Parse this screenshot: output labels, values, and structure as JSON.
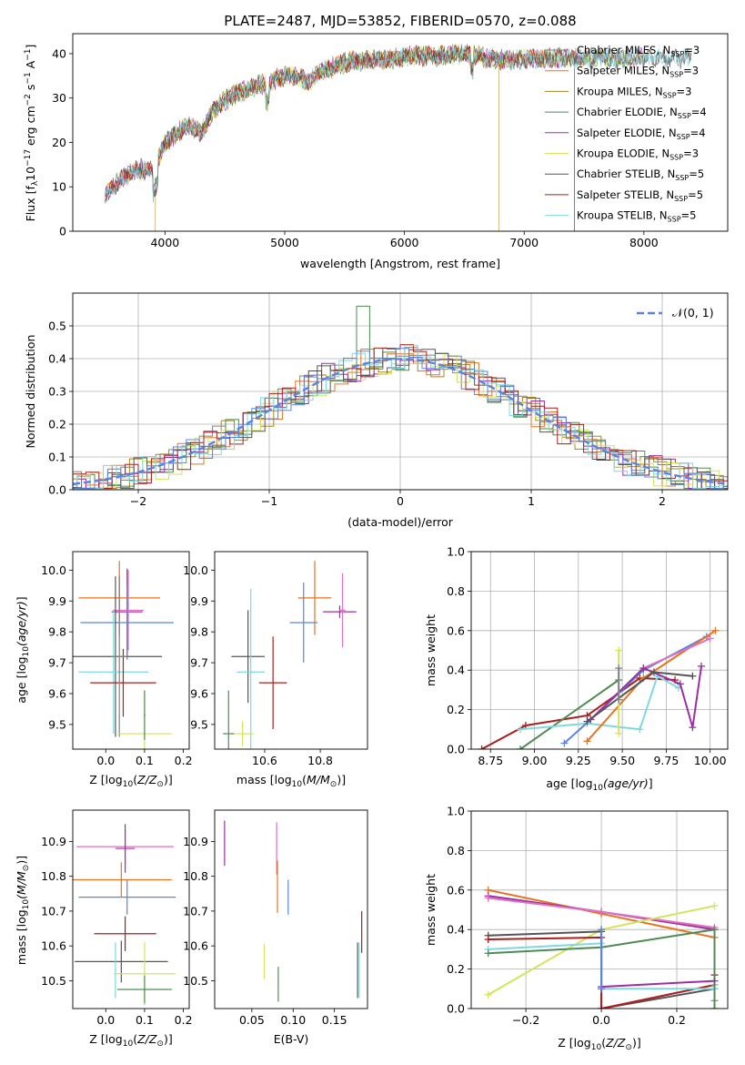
{
  "figure_title": "PLATE=2487, MJD=53852, FIBERID=0570, z=0.088",
  "colors": {
    "chabrier_miles": "#808080",
    "salpeter_miles": "#e8731f",
    "kroupa_miles": "#a8861d",
    "chabrier_elodie": "#4f8a55",
    "salpeter_elodie": "#9b2ea3",
    "kroupa_elodie": "#d4e35a",
    "chabrier_stelib": "#555555",
    "salpeter_stelib": "#a81f1f",
    "kroupa_stelib": "#7fd8e0",
    "blue": "#5b84e0",
    "pink": "#e070c0",
    "normal": "#5b84e0"
  },
  "chart_data": [
    {
      "id": "spectrum",
      "type": "line",
      "title": "PLATE=2487, MJD=53852, FIBERID=0570, z=0.088",
      "xlabel": "wavelength [Angstrom, rest frame]",
      "ylabel_main": "Flux [f",
      "ylabel_sub1": "λ",
      "ylabel_mid": "10",
      "ylabel_sup1": "−17",
      "ylabel_tail": " erg cm",
      "ylabel_sup2": "−2",
      "ylabel_tail2": " s",
      "ylabel_sup3": "−1",
      "ylabel_tail3": " A",
      "ylabel_sup4": "−1",
      "ylabel_end": "]",
      "xlim": [
        3230,
        8700
      ],
      "ylim": [
        0,
        44.5
      ],
      "xticks": [
        "4000",
        "5000",
        "6000",
        "7000",
        "8000"
      ],
      "xtick_values": [
        4000,
        5000,
        6000,
        7000,
        8000
      ],
      "yticks": [
        "0",
        "10",
        "20",
        "30",
        "40"
      ],
      "ytick_values": [
        0,
        10,
        20,
        30,
        40
      ],
      "continuum_knots": [
        [
          3500,
          8
        ],
        [
          3600,
          11
        ],
        [
          3700,
          13
        ],
        [
          3800,
          14
        ],
        [
          3900,
          13.5
        ],
        [
          4000,
          20
        ],
        [
          4100,
          22
        ],
        [
          4200,
          24
        ],
        [
          4300,
          22
        ],
        [
          4400,
          27
        ],
        [
          4500,
          29.5
        ],
        [
          4600,
          31
        ],
        [
          4700,
          32
        ],
        [
          4800,
          33
        ],
        [
          4900,
          34
        ],
        [
          5000,
          35
        ],
        [
          5100,
          35
        ],
        [
          5200,
          33.5
        ],
        [
          5300,
          36
        ],
        [
          5500,
          38
        ],
        [
          5700,
          38.5
        ],
        [
          5900,
          39
        ],
        [
          6100,
          39.5
        ],
        [
          6300,
          39.5
        ],
        [
          6500,
          40
        ],
        [
          6700,
          39
        ],
        [
          6900,
          38.5
        ],
        [
          7100,
          39
        ],
        [
          7300,
          39
        ],
        [
          7400,
          39
        ]
      ],
      "legend": [
        {
          "label": "Chabrier MILES, N",
          "sub": "SSP",
          "suffix": "=3",
          "color_key": "chabrier_miles"
        },
        {
          "label": "Salpeter MILES, N",
          "sub": "SSP",
          "suffix": "=3",
          "color_key": "salpeter_miles"
        },
        {
          "label": "Kroupa MILES, N",
          "sub": "SSP",
          "suffix": "=3",
          "color_key": "kroupa_miles"
        },
        {
          "label": "Chabrier ELODIE, N",
          "sub": "SSP",
          "suffix": "=4",
          "color_key": "chabrier_elodie"
        },
        {
          "label": "Salpeter ELODIE, N",
          "sub": "SSP",
          "suffix": "=4",
          "color_key": "salpeter_elodie"
        },
        {
          "label": "Kroupa ELODIE, N",
          "sub": "SSP",
          "suffix": "=3",
          "color_key": "kroupa_elodie"
        },
        {
          "label": "Chabrier STELIB, N",
          "sub": "SSP",
          "suffix": "=5",
          "color_key": "chabrier_stelib"
        },
        {
          "label": "Salpeter STELIB, N",
          "sub": "SSP",
          "suffix": "=5",
          "color_key": "salpeter_stelib"
        },
        {
          "label": "Kroupa STELIB, N",
          "sub": "SSP",
          "suffix": "=5",
          "color_key": "kroupa_stelib"
        }
      ]
    },
    {
      "id": "residuals",
      "type": "histogram",
      "xlabel": "(data-model)/error",
      "ylabel": "Normed distribution",
      "xlim": [
        -2.5,
        2.5
      ],
      "ylim": [
        0,
        0.6
      ],
      "xticks": [
        "−2",
        "−1",
        "0",
        "1",
        "2"
      ],
      "xtick_values": [
        -2,
        -1,
        0,
        1,
        2
      ],
      "yticks": [
        "0.0",
        "0.1",
        "0.2",
        "0.3",
        "0.4",
        "0.5"
      ],
      "ytick_values": [
        0,
        0.1,
        0.2,
        0.3,
        0.4,
        0.5
      ],
      "legend_label": "𝒩(0, 1)",
      "bin_width": 0.1,
      "grid": true
    },
    {
      "id": "age_vs_Z",
      "type": "errorbar",
      "xlabel": "Z [log",
      "xlabel_sub": "10",
      "xlabel_mid": "(",
      "xlabel_italic": "Z/Z",
      "xlabel_sub2": "⊙",
      "xlabel_end": ")]",
      "ylabel": "age  [log",
      "ylabel_sub": "10",
      "ylabel_italic": "(age/yr)",
      "ylabel_end": "]",
      "xlim": [
        -0.085,
        0.215
      ],
      "ylim": [
        9.42,
        10.06
      ],
      "xticks": [
        "0.0",
        "0.1",
        "0.2"
      ],
      "xtick_values": [
        0,
        0.1,
        0.2
      ],
      "yticks": [
        "9.5",
        "9.6",
        "9.7",
        "9.8",
        "9.9",
        "10.0"
      ],
      "ytick_values": [
        9.5,
        9.6,
        9.7,
        9.8,
        9.9,
        10.0
      ],
      "points": [
        {
          "x": 0.035,
          "xerr": 0.105,
          "y": 9.91,
          "yerr": 0.12,
          "color_key": "salpeter_miles"
        },
        {
          "x": 0.055,
          "xerr": 0.04,
          "y": 9.865,
          "yerr": 0.14,
          "color_key": "salpeter_elodie"
        },
        {
          "x": 0.058,
          "xerr": 0.04,
          "y": 9.87,
          "yerr": 0.13,
          "color_key": "pink"
        },
        {
          "x": 0.055,
          "xerr": 0.12,
          "y": 9.83,
          "yerr": 0.12,
          "color_key": "blue"
        },
        {
          "x": 0.025,
          "xerr": 0.12,
          "y": 9.72,
          "yerr": 0.26,
          "color_key": "chabrier_stelib"
        },
        {
          "x": 0.02,
          "xerr": 0.09,
          "y": 9.67,
          "yerr": 0.2,
          "color_key": "kroupa_stelib"
        },
        {
          "x": 0.045,
          "xerr": 0.085,
          "y": 9.635,
          "yerr": 0.11,
          "color_key": "salpeter_stelib"
        },
        {
          "x": 0.035,
          "xerr": 0.02,
          "y": 9.72,
          "yerr": 0.26,
          "color_key": "chabrier_miles"
        },
        {
          "x": 0.1,
          "xerr": 0.07,
          "y": 9.47,
          "yerr": 0.14,
          "color_key": "kroupa_elodie"
        },
        {
          "x": 0.1,
          "xerr": 0.002,
          "y": 9.53,
          "yerr": 0.08,
          "color_key": "chabrier_elodie"
        }
      ]
    },
    {
      "id": "age_vs_mass",
      "type": "errorbar",
      "xlabel": "mass [log",
      "xlabel_sub": "10",
      "xlabel_mid": "(",
      "xlabel_italic": "M/M",
      "xlabel_sub2": "⊙",
      "xlabel_end": ")]",
      "xlim": [
        10.42,
        10.97
      ],
      "ylim": [
        9.42,
        10.06
      ],
      "xticks": [
        "10.6",
        "10.8"
      ],
      "xtick_values": [
        10.6,
        10.8
      ],
      "yticks": [
        "9.5",
        "9.6",
        "9.7",
        "9.8",
        "9.9",
        "10.0"
      ],
      "ytick_values": [
        9.5,
        9.6,
        9.7,
        9.8,
        9.9,
        10.0
      ],
      "points": [
        {
          "x": 10.78,
          "xerr": 0.06,
          "y": 9.91,
          "yerr": 0.12,
          "color_key": "salpeter_miles"
        },
        {
          "x": 10.87,
          "xerr": 0.06,
          "y": 9.865,
          "yerr": 0.02,
          "color_key": "salpeter_elodie"
        },
        {
          "x": 10.88,
          "xerr": 0.01,
          "y": 9.87,
          "yerr": 0.12,
          "color_key": "pink"
        },
        {
          "x": 10.74,
          "xerr": 0.05,
          "y": 9.83,
          "yerr": 0.13,
          "color_key": "blue"
        },
        {
          "x": 10.54,
          "xerr": 0.06,
          "y": 9.72,
          "yerr": 0.15,
          "color_key": "chabrier_stelib"
        },
        {
          "x": 10.55,
          "xerr": 0.05,
          "y": 9.67,
          "yerr": 0.27,
          "color_key": "kroupa_stelib"
        },
        {
          "x": 10.63,
          "xerr": 0.05,
          "y": 9.635,
          "yerr": 0.15,
          "color_key": "salpeter_stelib"
        },
        {
          "x": 10.52,
          "xerr": 0.04,
          "y": 9.47,
          "yerr": 0.04,
          "color_key": "kroupa_elodie"
        },
        {
          "x": 10.47,
          "xerr": 0.02,
          "y": 9.47,
          "yerr": 0.14,
          "color_key": "chabrier_elodie"
        }
      ]
    },
    {
      "id": "weight_vs_age",
      "type": "line",
      "xlabel": "age  [log",
      "xlabel_sub": "10",
      "xlabel_italic": "(age/yr)",
      "xlabel_end": "]",
      "ylabel": "mass weight",
      "xlim": [
        8.64,
        10.1
      ],
      "ylim": [
        0,
        1
      ],
      "xticks": [
        "8.75",
        "9.00",
        "9.25",
        "9.50",
        "9.75",
        "10.00"
      ],
      "xtick_values": [
        8.75,
        9.0,
        9.25,
        9.5,
        9.75,
        10.0
      ],
      "yticks": [
        "0.0",
        "0.2",
        "0.4",
        "0.6",
        "0.8",
        "1.0"
      ],
      "ytick_values": [
        0,
        0.2,
        0.4,
        0.6,
        0.8,
        1.0
      ],
      "series": [
        {
          "color_key": "salpeter_stelib",
          "x": [
            8.7,
            8.95,
            9.3,
            9.6,
            9.8
          ],
          "y": [
            0.0,
            0.12,
            0.17,
            0.36,
            0.35
          ]
        },
        {
          "color_key": "chabrier_elodie",
          "x": [
            8.92,
            9.48
          ],
          "y": [
            0.0,
            0.35
          ]
        },
        {
          "color_key": "kroupa_stelib",
          "x": [
            8.92,
            9.3,
            9.6,
            9.7,
            9.82
          ],
          "y": [
            0.1,
            0.13,
            0.1,
            0.37,
            0.31
          ]
        },
        {
          "color_key": "blue",
          "x": [
            9.17,
            9.32,
            9.62,
            9.98
          ],
          "y": [
            0.03,
            0.15,
            0.4,
            0.57
          ]
        },
        {
          "color_key": "salpeter_miles",
          "x": [
            9.3,
            9.62,
            10.03
          ],
          "y": [
            0.04,
            0.36,
            0.6
          ]
        },
        {
          "color_key": "pink",
          "x": [
            9.62,
            10.0
          ],
          "y": [
            0.41,
            0.56
          ]
        },
        {
          "color_key": "salpeter_elodie",
          "x": [
            9.32,
            9.62,
            9.83,
            9.9,
            9.95
          ],
          "y": [
            0.15,
            0.41,
            0.33,
            0.11,
            0.42
          ]
        },
        {
          "color_key": "chabrier_stelib",
          "x": [
            9.3,
            9.68,
            9.9
          ],
          "y": [
            0.14,
            0.39,
            0.37
          ]
        },
        {
          "color_key": "kroupa_elodie",
          "x": [
            9.48,
            9.48
          ],
          "y": [
            0.08,
            0.5
          ]
        },
        {
          "color_key": "chabrier_miles",
          "x": [
            9.48,
            9.48
          ],
          "y": [
            0.25,
            0.41
          ]
        }
      ]
    },
    {
      "id": "mass_vs_Z",
      "type": "errorbar",
      "xlabel": "Z [log",
      "xlabel_sub": "10",
      "xlabel_mid": "(",
      "xlabel_italic": "Z/Z",
      "xlabel_sub2": "⊙",
      "xlabel_end": ")]",
      "ylabel": "mass [log",
      "ylabel_sub": "10",
      "ylabel_italic": "(M/M",
      "ylabel_sub2": "⊙",
      "ylabel_end": ")]",
      "xlim": [
        -0.085,
        0.215
      ],
      "ylim": [
        10.42,
        10.99
      ],
      "xticks": [
        "0.0",
        "0.1",
        "0.2"
      ],
      "xtick_values": [
        0,
        0.1,
        0.2
      ],
      "yticks": [
        "10.5",
        "10.6",
        "10.7",
        "10.8",
        "10.9"
      ],
      "ytick_values": [
        10.5,
        10.6,
        10.7,
        10.8,
        10.9
      ],
      "points": [
        {
          "x": 0.05,
          "xerr": 0.125,
          "y": 10.885,
          "yerr": 0.05,
          "color_key": "pink"
        },
        {
          "x": 0.05,
          "xerr": 0.025,
          "y": 10.88,
          "yerr": 0.07,
          "color_key": "salpeter_elodie"
        },
        {
          "x": 0.04,
          "xerr": 0.13,
          "y": 10.79,
          "yerr": 0.05,
          "color_key": "salpeter_miles"
        },
        {
          "x": 0.055,
          "xerr": 0.125,
          "y": 10.74,
          "yerr": 0.05,
          "color_key": "blue"
        },
        {
          "x": 0.05,
          "xerr": 0.08,
          "y": 10.635,
          "yerr": 0.05,
          "color_key": "salpeter_stelib"
        },
        {
          "x": 0.04,
          "xerr": 0.12,
          "y": 10.555,
          "yerr": 0.06,
          "color_key": "chabrier_stelib"
        },
        {
          "x": 0.1,
          "xerr": 0.08,
          "y": 10.52,
          "yerr": 0.09,
          "color_key": "kroupa_elodie"
        },
        {
          "x": 0.1,
          "xerr": 0.07,
          "y": 10.475,
          "yerr": 0.04,
          "color_key": "chabrier_elodie"
        },
        {
          "x": 0.025,
          "xerr": 0.002,
          "y": 10.53,
          "yerr": 0.08,
          "color_key": "kroupa_stelib"
        }
      ]
    },
    {
      "id": "mass_vs_ebv",
      "type": "errorbar",
      "xlabel": "E(B-V)",
      "xlim": [
        0.005,
        0.19
      ],
      "ylim": [
        10.42,
        10.99
      ],
      "xticks": [
        "0.05",
        "0.10",
        "0.15"
      ],
      "xtick_values": [
        0.05,
        0.1,
        0.15
      ],
      "yticks": [
        "10.5",
        "10.6",
        "10.7",
        "10.8",
        "10.9"
      ],
      "ytick_values": [
        10.5,
        10.6,
        10.7,
        10.8,
        10.9
      ],
      "points": [
        {
          "x": 0.017,
          "xerr": 0,
          "y": 10.895,
          "yerr": 0.065,
          "color_key": "salpeter_elodie"
        },
        {
          "x": 0.08,
          "xerr": 0,
          "y": 10.88,
          "yerr": 0.075,
          "color_key": "pink"
        },
        {
          "x": 0.081,
          "xerr": 0,
          "y": 10.77,
          "yerr": 0.075,
          "color_key": "salpeter_miles"
        },
        {
          "x": 0.094,
          "xerr": 0,
          "y": 10.74,
          "yerr": 0.05,
          "color_key": "blue"
        },
        {
          "x": 0.065,
          "xerr": 0,
          "y": 10.555,
          "yerr": 0.05,
          "color_key": "kroupa_elodie"
        },
        {
          "x": 0.082,
          "xerr": 0,
          "y": 10.49,
          "yerr": 0.05,
          "color_key": "chabrier_elodie"
        },
        {
          "x": 0.183,
          "xerr": 0,
          "y": 10.64,
          "yerr": 0.06,
          "color_key": "salpeter_stelib"
        },
        {
          "x": 0.18,
          "xerr": 0,
          "y": 10.53,
          "yerr": 0.08,
          "color_key": "kroupa_stelib"
        },
        {
          "x": 0.178,
          "xerr": 0,
          "y": 10.53,
          "yerr": 0.08,
          "color_key": "chabrier_stelib"
        }
      ]
    },
    {
      "id": "weight_vs_Z",
      "type": "line",
      "xlabel": "Z [log",
      "xlabel_sub": "10",
      "xlabel_mid": "(",
      "xlabel_italic": "Z/Z",
      "xlabel_sub2": "⊙",
      "xlabel_end": ")]",
      "ylabel": "mass weight",
      "xlim": [
        -0.345,
        0.335
      ],
      "ylim": [
        0,
        1
      ],
      "xticks": [
        "−0.2",
        "0.0",
        "0.2"
      ],
      "xtick_values": [
        -0.2,
        0,
        0.2
      ],
      "yticks": [
        "0.0",
        "0.2",
        "0.4",
        "0.6",
        "0.8",
        "1.0"
      ],
      "ytick_values": [
        0,
        0.2,
        0.4,
        0.6,
        0.8,
        1.0
      ],
      "series": [
        {
          "color_key": "salpeter_miles",
          "x": [
            -0.3,
            0.0,
            0.3,
            0.3
          ],
          "y": [
            0.6,
            0.48,
            0.36,
            0.04
          ]
        },
        {
          "color_key": "salpeter_elodie",
          "x": [
            -0.3,
            0.0,
            0.3
          ],
          "y": [
            0.57,
            0.49,
            0.4
          ]
        },
        {
          "color_key": "pink",
          "x": [
            -0.3,
            0.0,
            0.3
          ],
          "y": [
            0.56,
            0.49,
            0.41
          ]
        },
        {
          "color_key": "kroupa_elodie",
          "x": [
            -0.3,
            0.0,
            0.3
          ],
          "y": [
            0.07,
            0.4,
            0.52
          ]
        },
        {
          "color_key": "chabrier_stelib",
          "x": [
            -0.3,
            0.0,
            0.0,
            0.3
          ],
          "y": [
            0.37,
            0.39,
            0.0,
            0.1
          ]
        },
        {
          "color_key": "salpeter_stelib",
          "x": [
            -0.3,
            0.0,
            0.0,
            0.3,
            0.3
          ],
          "y": [
            0.35,
            0.36,
            0.0,
            0.12,
            0.17
          ]
        },
        {
          "color_key": "kroupa_stelib",
          "x": [
            -0.3,
            0.0,
            0.0,
            0.3,
            0.3
          ],
          "y": [
            0.3,
            0.33,
            0.1,
            0.1,
            0.12
          ]
        },
        {
          "color_key": "chabrier_elodie",
          "x": [
            -0.3,
            0.0,
            0.3,
            0.3
          ],
          "y": [
            0.28,
            0.31,
            0.4,
            0.0
          ]
        },
        {
          "color_key": "salpeter_elodie",
          "x": [
            0.0,
            0.3
          ],
          "y": [
            0.11,
            0.14
          ]
        },
        {
          "color_key": "blue",
          "x": [
            0.0,
            0.0
          ],
          "y": [
            0.1,
            0.4
          ]
        }
      ]
    }
  ]
}
